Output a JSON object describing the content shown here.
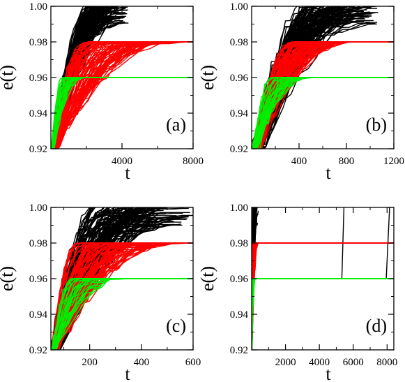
{
  "colors": {
    "black": "#000000",
    "red": "#ff0000",
    "green": "#00ee00"
  },
  "chart_data": [
    {
      "type": "line",
      "panel_label": "(a)",
      "xlabel": "t",
      "ylabel": "e(t)",
      "xlim": [
        0,
        8000
      ],
      "ylim": [
        0.92,
        1.0
      ],
      "xticks": [
        4000,
        8000
      ],
      "xtick_labels": [
        "4000",
        "8000"
      ],
      "yticks": [
        0.92,
        0.94,
        0.96,
        0.98,
        1.0
      ],
      "ytick_labels": [
        "0.92",
        "0.94",
        "0.96",
        "0.98",
        "1.00"
      ],
      "series": [
        {
          "color": "black",
          "values": [
            [
              0,
              0.92
            ],
            [
              200,
              0.96
            ],
            [
              500,
              0.975
            ],
            [
              1500,
              0.99
            ],
            [
              3500,
              1.0
            ]
          ]
        },
        {
          "color": "red",
          "values": [
            [
              0,
              0.92
            ],
            [
              300,
              0.955
            ],
            [
              800,
              0.97
            ],
            [
              3000,
              0.978
            ],
            [
              8000,
              0.98
            ]
          ]
        },
        {
          "color": "green",
          "values": [
            [
              0,
              0.92
            ],
            [
              150,
              0.945
            ],
            [
              500,
              0.958
            ],
            [
              1000,
              0.96
            ],
            [
              8000,
              0.96
            ]
          ]
        }
      ]
    },
    {
      "type": "line",
      "panel_label": "(b)",
      "xlabel": "t",
      "ylabel": "e(t)",
      "xlim": [
        0,
        1200
      ],
      "ylim": [
        0.92,
        1.0
      ],
      "xticks": [
        400,
        800,
        1200
      ],
      "xtick_labels": [
        "400",
        "800",
        "1200"
      ],
      "yticks": [
        0.92,
        0.94,
        0.96,
        0.98,
        1.0
      ],
      "ytick_labels": [
        "0.92",
        "0.94",
        "0.96",
        "0.98",
        "1.00"
      ],
      "series": [
        {
          "color": "black",
          "values": [
            [
              50,
              0.92
            ],
            [
              200,
              0.97
            ],
            [
              400,
              0.985
            ],
            [
              700,
              0.995
            ],
            [
              1000,
              1.0
            ]
          ]
        },
        {
          "color": "red",
          "values": [
            [
              50,
              0.92
            ],
            [
              200,
              0.962
            ],
            [
              450,
              0.976
            ],
            [
              850,
              0.98
            ],
            [
              1200,
              0.98
            ]
          ]
        },
        {
          "color": "green",
          "values": [
            [
              50,
              0.92
            ],
            [
              150,
              0.945
            ],
            [
              300,
              0.958
            ],
            [
              600,
              0.96
            ],
            [
              1200,
              0.96
            ]
          ]
        }
      ]
    },
    {
      "type": "line",
      "panel_label": "(c)",
      "xlabel": "t",
      "ylabel": "e(t)",
      "xlim": [
        50,
        600
      ],
      "ylim": [
        0.92,
        1.0
      ],
      "xticks": [
        200,
        400,
        600
      ],
      "xtick_labels": [
        "200",
        "400",
        "600"
      ],
      "yticks": [
        0.92,
        0.94,
        0.96,
        0.98,
        1.0
      ],
      "ytick_labels": [
        "0.92",
        "0.94",
        "0.96",
        "0.98",
        "1.00"
      ],
      "series": [
        {
          "color": "black",
          "values": [
            [
              55,
              0.92
            ],
            [
              120,
              0.965
            ],
            [
              220,
              0.982
            ],
            [
              380,
              0.993
            ],
            [
              580,
              1.0
            ]
          ]
        },
        {
          "color": "red",
          "values": [
            [
              55,
              0.92
            ],
            [
              120,
              0.955
            ],
            [
              220,
              0.972
            ],
            [
              400,
              0.979
            ],
            [
              600,
              0.98
            ]
          ]
        },
        {
          "color": "green",
          "values": [
            [
              55,
              0.92
            ],
            [
              100,
              0.945
            ],
            [
              180,
              0.957
            ],
            [
              300,
              0.96
            ],
            [
              600,
              0.96
            ]
          ]
        }
      ]
    },
    {
      "type": "line",
      "panel_label": "(d)",
      "xlabel": "t",
      "ylabel": "e(t)",
      "xlim": [
        0,
        8400
      ],
      "ylim": [
        0.92,
        1.0
      ],
      "xticks": [
        2000,
        4000,
        6000,
        8000
      ],
      "xtick_labels": [
        "2000",
        "4000",
        "6000",
        "8000"
      ],
      "yticks": [
        0.92,
        0.94,
        0.96,
        0.98,
        1.0
      ],
      "ytick_labels": [
        "0.92",
        "0.94",
        "0.96",
        "0.98",
        "1.00"
      ],
      "series": [
        {
          "color": "black",
          "values": [
            [
              0,
              0.92
            ],
            [
              100,
              0.97
            ],
            [
              200,
              0.99
            ],
            [
              300,
              1.0
            ]
          ]
        },
        {
          "color": "red",
          "values": [
            [
              0,
              0.92
            ],
            [
              100,
              0.97
            ],
            [
              300,
              0.98
            ],
            [
              8400,
              0.98
            ]
          ]
        },
        {
          "color": "green",
          "values": [
            [
              0,
              0.92
            ],
            [
              60,
              0.955
            ],
            [
              200,
              0.96
            ],
            [
              8400,
              0.96
            ]
          ]
        }
      ]
    }
  ]
}
